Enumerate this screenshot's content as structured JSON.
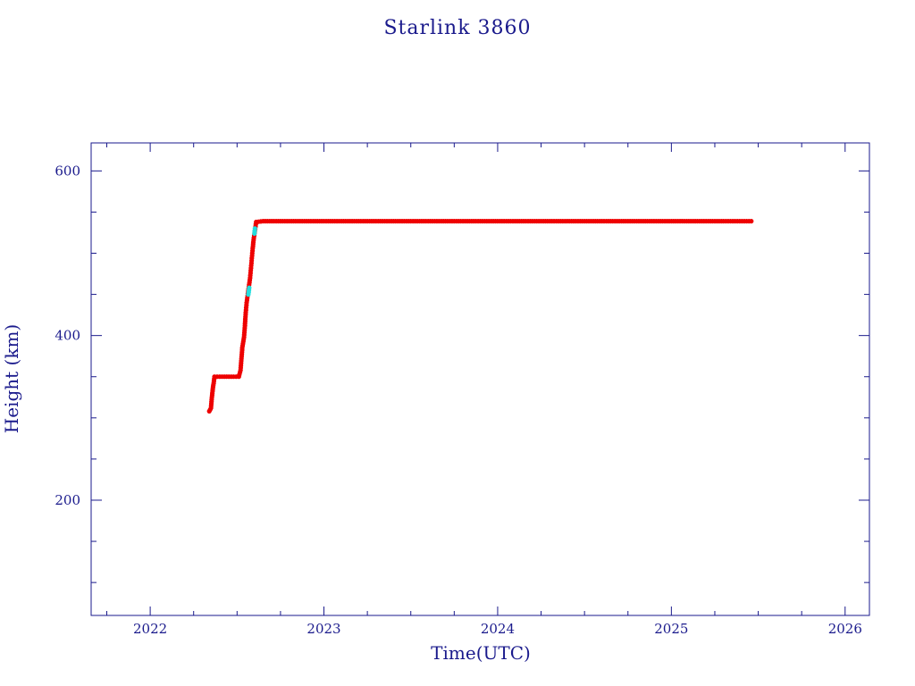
{
  "chart_data": {
    "type": "scatter",
    "title": "Starlink 3860",
    "xlabel": "Time(UTC)",
    "ylabel": "Height (km)",
    "xlim": [
      2021.66,
      2026.14
    ],
    "ylim": [
      60,
      634
    ],
    "x_major_ticks": [
      2022,
      2023,
      2024,
      2025,
      2026
    ],
    "x_tick_labels": [
      "2022",
      "2023",
      "2024",
      "2025",
      "2026"
    ],
    "x_minor_ticks": [
      2021.75,
      2022.25,
      2022.5,
      2022.75,
      2023.25,
      2023.5,
      2023.75,
      2024.25,
      2024.5,
      2024.75,
      2025.25,
      2025.5,
      2025.75
    ],
    "y_major_ticks": [
      200,
      400,
      600
    ],
    "y_tick_labels": [
      "200",
      "400",
      "600"
    ],
    "y_minor_ticks": [
      100,
      150,
      250,
      300,
      350,
      450,
      500,
      550
    ],
    "grid": false,
    "series": [
      {
        "color": "#ee0000",
        "points": [
          [
            2022.34,
            308
          ],
          [
            2022.35,
            312
          ],
          [
            2022.355,
            325
          ],
          [
            2022.36,
            335
          ],
          [
            2022.365,
            342
          ],
          [
            2022.37,
            350
          ],
          [
            2022.4,
            350
          ],
          [
            2022.44,
            350
          ],
          [
            2022.48,
            350
          ],
          [
            2022.51,
            350
          ],
          [
            2022.52,
            358
          ],
          [
            2022.525,
            372
          ],
          [
            2022.53,
            385
          ],
          [
            2022.54,
            398
          ],
          [
            2022.545,
            412
          ],
          [
            2022.55,
            428
          ],
          [
            2022.555,
            440
          ],
          [
            2022.575,
            470
          ],
          [
            2022.58,
            482
          ],
          [
            2022.585,
            494
          ],
          [
            2022.59,
            506
          ],
          [
            2022.595,
            516
          ],
          [
            2022.61,
            538
          ],
          [
            2022.65,
            539
          ],
          [
            2022.75,
            539
          ],
          [
            2022.9,
            539
          ],
          [
            2023.1,
            539
          ],
          [
            2023.3,
            539
          ],
          [
            2023.5,
            539
          ],
          [
            2023.7,
            539
          ],
          [
            2023.9,
            539
          ],
          [
            2024.1,
            539
          ],
          [
            2024.3,
            539
          ],
          [
            2024.5,
            539
          ],
          [
            2024.7,
            539
          ],
          [
            2024.9,
            539
          ],
          [
            2025.1,
            539
          ],
          [
            2025.3,
            539
          ],
          [
            2025.46,
            539
          ]
        ]
      },
      {
        "color": "#22dddd",
        "points": [
          [
            2022.565,
            450
          ],
          [
            2022.57,
            458
          ],
          [
            2022.6,
            524
          ],
          [
            2022.603,
            530
          ]
        ]
      }
    ]
  }
}
